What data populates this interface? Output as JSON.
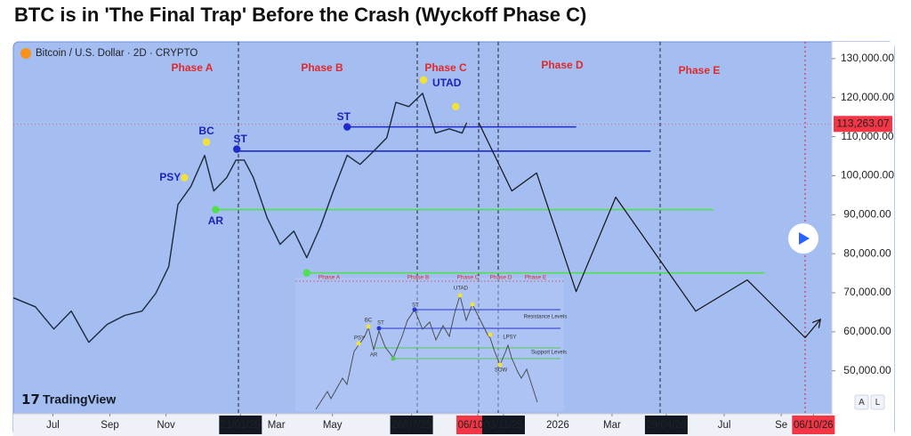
{
  "chart_data": {
    "type": "line",
    "title": "BTC is in 'The Final Trap' Before the Crash (Wyckoff Phase C)",
    "symbol": "Bitcoin / U.S. Dollar · 2D · CRYPTO",
    "xlim": [
      "19/05/24",
      "26/10/26"
    ],
    "ylim": [
      39000,
      134300
    ],
    "yticks": [
      {
        "value": 50000,
        "label": "50,000.00"
      },
      {
        "value": 60000,
        "label": "60,000.00"
      },
      {
        "value": 70000,
        "label": "70,000.00"
      },
      {
        "value": 80000,
        "label": "80,000.00"
      },
      {
        "value": 90000,
        "label": "90,000.00"
      },
      {
        "value": 100000,
        "label": "100,000.00"
      },
      {
        "value": 110000,
        "label": "110,000.00"
      },
      {
        "value": 120000,
        "label": "120,000.00"
      },
      {
        "value": 130000,
        "label": "130,000.00"
      }
    ],
    "xticks": [
      {
        "value": "01/07/24",
        "label": "Jul"
      },
      {
        "value": "01/09/24",
        "label": "Sep"
      },
      {
        "value": "01/11/24",
        "label": "Nov"
      },
      {
        "value": "21/01/25",
        "label": "21/01/25",
        "box": "#131722"
      },
      {
        "value": "01/03/25",
        "label": "Mar"
      },
      {
        "value": "01/05/25",
        "label": "May"
      },
      {
        "value": "26/07/25",
        "label": "26/07/25",
        "box": "#131722"
      },
      {
        "value": "06/10/25",
        "label": "06/10/25",
        "box": "#f23645"
      },
      {
        "value": "03/11/25",
        "label": "03/11/25",
        "box": "#131722"
      },
      {
        "value": "01/01/26",
        "label": "2026"
      },
      {
        "value": "01/03/26",
        "label": "Mar"
      },
      {
        "value": "29/04/26",
        "label": "29/04/26",
        "box": "#131722"
      },
      {
        "value": "01/07/26",
        "label": "Jul"
      },
      {
        "value": "01/09/26",
        "label": "Se"
      },
      {
        "value": "06/10/26",
        "label": "06/10/26",
        "box": "#f23645"
      }
    ],
    "series": [
      {
        "color": "#1b2a3a",
        "x": [
          "19/05/24",
          "12/06/24",
          "02/07/24",
          "21/07/24",
          "09/08/24",
          "29/08/24",
          "17/09/24",
          "06/10/24",
          "21/10/24",
          "04/11/24",
          "14/11/24",
          "28/11/24",
          "13/12/24",
          "23/12/24",
          "06/01/25",
          "16/01/25",
          "25/01/25",
          "04/02/25",
          "19/02/25",
          "05/03/25",
          "20/03/25",
          "03/04/25",
          "18/04/25",
          "02/05/25",
          "17/05/25",
          "31/05/25",
          "15/06/25",
          "29/06/25",
          "09/07/25",
          "23/07/25",
          "07/08/25",
          "21/08/25",
          "05/09/25",
          "19/09/25",
          "24/09/25"
        ],
        "values": [
          68700,
          66400,
          60700,
          65300,
          57300,
          61900,
          64200,
          65300,
          69900,
          76700,
          92600,
          97200,
          105200,
          96100,
          99500,
          104000,
          104000,
          99500,
          89200,
          82400,
          85800,
          79000,
          87000,
          96100,
          105200,
          102900,
          106300,
          109700,
          118800,
          117700,
          121100,
          110900,
          112000,
          110900,
          113600
        ]
      },
      {
        "color": "#111111",
        "arrow": true,
        "x": [
          "07/10/25",
          "12/11/25",
          "09/12/25",
          "21/01/26",
          "05/03/26",
          "31/05/26",
          "26/07/26",
          "27/09/26",
          "13/10/26"
        ],
        "values": [
          113600,
          96100,
          100700,
          70300,
          94500,
          65300,
          73300,
          58500,
          63000
        ]
      }
    ],
    "levels": [
      {
        "value": 112500,
        "color": "#1f2bc9",
        "from": "17/05/25",
        "to": "21/01/26"
      },
      {
        "value": 106300,
        "color": "#1f2bc9",
        "from": "16/01/25",
        "to": "12/04/26"
      },
      {
        "value": 91300,
        "color": "#4fe04f",
        "from": "23/12/24",
        "to": "19/06/26"
      },
      {
        "value": 75100,
        "color": "#4fe04f",
        "from": "03/04/25",
        "to": "14/08/26"
      }
    ],
    "events": [
      {
        "label": "PSY",
        "x": "21/11/24",
        "value": 99500,
        "color": "#f2e13a",
        "label_pos": "left"
      },
      {
        "label": "BC",
        "x": "15/12/24",
        "value": 108600,
        "color": "#f2e13a",
        "label_pos": "above"
      },
      {
        "label": "AR",
        "x": "25/12/24",
        "value": 91300,
        "color": "#4fe04f",
        "label_pos": "below"
      },
      {
        "label": "ST",
        "x": "17/01/25",
        "value": 106800,
        "color": "#1f2bc9",
        "label_pos": "above-right"
      },
      {
        "label": "ST",
        "x": "17/05/25",
        "value": 112500,
        "color": "#1f2bc9",
        "label_pos": "above-left"
      },
      {
        "label": "UTAD",
        "x": "08/08/25",
        "value": 124500,
        "color": "#f2e13a",
        "label_pos": "right"
      },
      {
        "x": "12/09/25",
        "value": 117700,
        "color": "#f2e13a"
      },
      {
        "x": "03/04/25",
        "value": 75100,
        "color": "#4fe04f"
      }
    ],
    "last_price": {
      "value": 113263.07,
      "label": "113,263.07",
      "color": "#f23645"
    },
    "phases": [
      "Phase A",
      "Phase B",
      "Phase C",
      "Phase D",
      "Phase E"
    ]
  },
  "inset": {
    "phases": [
      "Phase A",
      "Phase B",
      "Phase C",
      "Phase D",
      "Phase E"
    ],
    "labels": [
      "UTAD",
      "BC",
      "ST",
      "PSY",
      "AR",
      "ST",
      "LPSY",
      "SOW",
      "Resistance Levels",
      "Support Levels"
    ]
  },
  "brand": "TradingView",
  "buttons": [
    "A",
    "L"
  ]
}
